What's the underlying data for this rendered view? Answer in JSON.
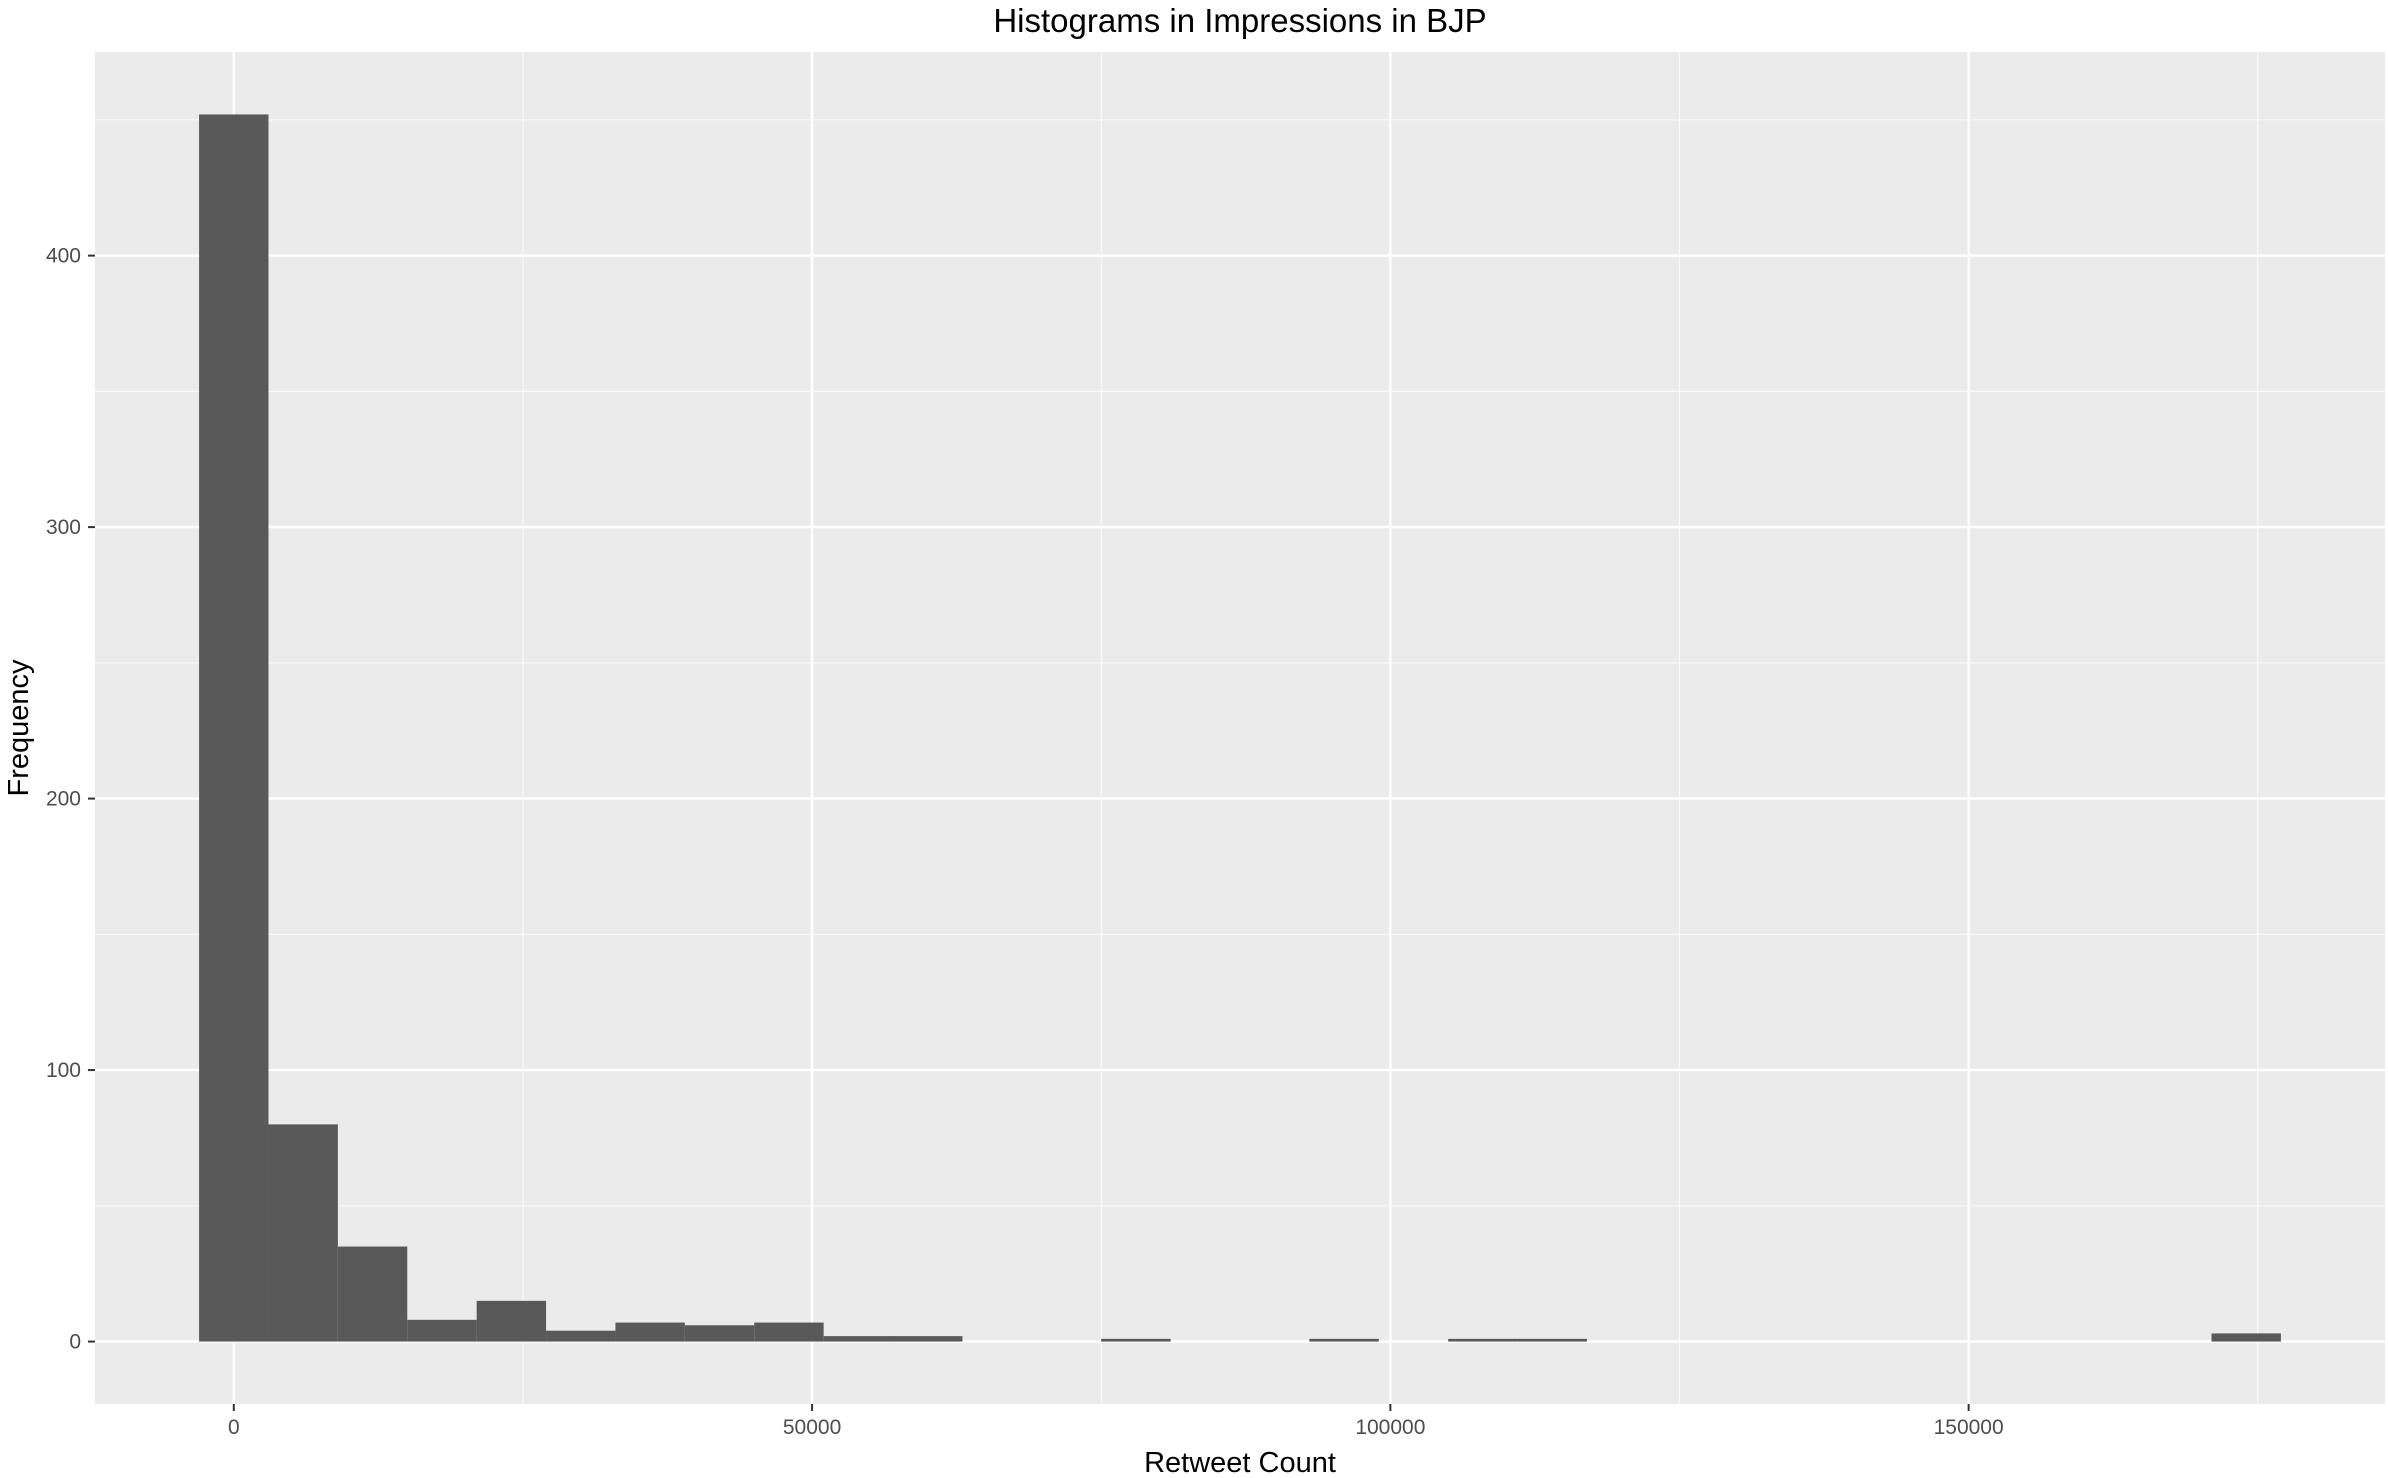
{
  "chart_data": {
    "type": "bar",
    "title": "Histograms in Impressions in BJP",
    "xlabel": "Retweet Count",
    "ylabel": "Frequency",
    "xlim": [
      -12000,
      186000
    ],
    "ylim": [
      -23,
      475
    ],
    "x_ticks": [
      0,
      50000,
      100000,
      150000
    ],
    "x_tick_labels": [
      "0",
      "50000",
      "100000",
      "150000"
    ],
    "y_ticks": [
      0,
      100,
      200,
      300,
      400
    ],
    "y_tick_labels": [
      "0",
      "100",
      "200",
      "300",
      "400"
    ],
    "grid": true,
    "bin_width": 6000,
    "bins": [
      {
        "x0": -3000,
        "x1": 3000,
        "count": 452
      },
      {
        "x0": 3000,
        "x1": 9000,
        "count": 80
      },
      {
        "x0": 9000,
        "x1": 15000,
        "count": 35
      },
      {
        "x0": 15000,
        "x1": 21000,
        "count": 8
      },
      {
        "x0": 21000,
        "x1": 27000,
        "count": 15
      },
      {
        "x0": 27000,
        "x1": 33000,
        "count": 4
      },
      {
        "x0": 33000,
        "x1": 39000,
        "count": 7
      },
      {
        "x0": 39000,
        "x1": 45000,
        "count": 6
      },
      {
        "x0": 45000,
        "x1": 51000,
        "count": 7
      },
      {
        "x0": 51000,
        "x1": 57000,
        "count": 2
      },
      {
        "x0": 57000,
        "x1": 63000,
        "count": 2
      },
      {
        "x0": 75000,
        "x1": 81000,
        "count": 1
      },
      {
        "x0": 93000,
        "x1": 99000,
        "count": 1
      },
      {
        "x0": 105000,
        "x1": 111000,
        "count": 1
      },
      {
        "x0": 111000,
        "x1": 117000,
        "count": 1
      },
      {
        "x0": 171000,
        "x1": 177000,
        "count": 3
      }
    ],
    "colors": {
      "panel": "#ebebeb",
      "grid_major": "#ffffff",
      "bar": "#595959"
    }
  }
}
